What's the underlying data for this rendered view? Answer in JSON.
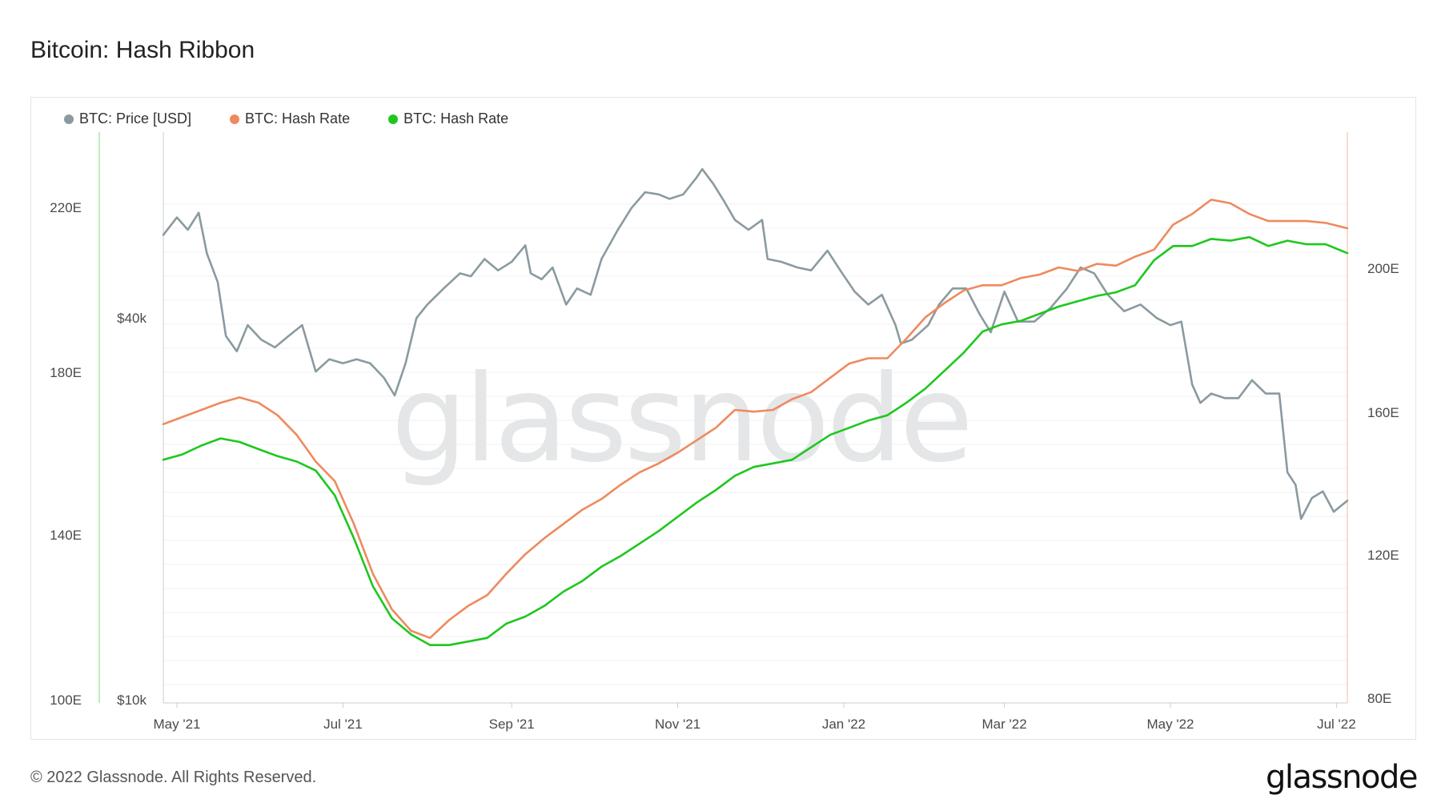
{
  "title": "Bitcoin: Hash Ribbon",
  "footer": "© 2022 Glassnode. All Rights Reserved.",
  "brand": "glassnode",
  "watermark": "glassnode",
  "colors": {
    "price": "#8a9aa0",
    "hash_30d": "#ee8a5f",
    "hash_60d": "#1ec71e"
  },
  "legend": [
    {
      "label": "BTC: Price [USD]",
      "color": "#8a9aa0"
    },
    {
      "label": "BTC: Hash Rate",
      "color": "#ee8a5f"
    },
    {
      "label": "BTC: Hash Rate",
      "color": "#1ec71e"
    }
  ],
  "chart_data": {
    "type": "line",
    "title": "Bitcoin: Hash Ribbon",
    "x_ticks": [
      "May '21",
      "Jul '21",
      "Sep '21",
      "Nov '21",
      "Jan '22",
      "Mar '22",
      "May '22",
      "Jul '22"
    ],
    "x_range": [
      "2021-04-26",
      "2022-07-05"
    ],
    "left_axis_ticks": [
      "220E",
      "180E",
      "140E",
      "100E"
    ],
    "price_axis_ticks": [
      "$40k",
      "$10k"
    ],
    "price_axis_scale": "log",
    "right_axis_ticks": [
      "200E",
      "160E",
      "120E",
      "80E"
    ],
    "grid": true,
    "legend_position": "top-left",
    "series": [
      {
        "name": "BTC: Price [USD]",
        "axis": "price",
        "x": [
          "2021-04-26",
          "2021-05-01",
          "2021-05-05",
          "2021-05-09",
          "2021-05-12",
          "2021-05-16",
          "2021-05-19",
          "2021-05-23",
          "2021-05-27",
          "2021-06-01",
          "2021-06-06",
          "2021-06-11",
          "2021-06-16",
          "2021-06-21",
          "2021-06-26",
          "2021-07-01",
          "2021-07-06",
          "2021-07-11",
          "2021-07-16",
          "2021-07-20",
          "2021-07-24",
          "2021-07-28",
          "2021-08-01",
          "2021-08-07",
          "2021-08-13",
          "2021-08-17",
          "2021-08-22",
          "2021-08-27",
          "2021-09-01",
          "2021-09-06",
          "2021-09-08",
          "2021-09-12",
          "2021-09-16",
          "2021-09-21",
          "2021-09-25",
          "2021-09-30",
          "2021-10-04",
          "2021-10-10",
          "2021-10-15",
          "2021-10-20",
          "2021-10-25",
          "2021-10-29",
          "2021-11-03",
          "2021-11-08",
          "2021-11-10",
          "2021-11-14",
          "2021-11-18",
          "2021-11-22",
          "2021-11-27",
          "2021-12-02",
          "2021-12-04",
          "2021-12-09",
          "2021-12-15",
          "2021-12-20",
          "2021-12-26",
          "2021-12-31",
          "2022-01-05",
          "2022-01-10",
          "2022-01-15",
          "2022-01-20",
          "2022-01-22",
          "2022-01-26",
          "2022-02-01",
          "2022-02-05",
          "2022-02-10",
          "2022-02-15",
          "2022-02-20",
          "2022-02-24",
          "2022-03-01",
          "2022-03-06",
          "2022-03-12",
          "2022-03-18",
          "2022-03-24",
          "2022-03-29",
          "2022-04-03",
          "2022-04-08",
          "2022-04-14",
          "2022-04-20",
          "2022-04-26",
          "2022-05-01",
          "2022-05-05",
          "2022-05-09",
          "2022-05-12",
          "2022-05-16",
          "2022-05-21",
          "2022-05-26",
          "2022-05-31",
          "2022-06-05",
          "2022-06-10",
          "2022-06-13",
          "2022-06-16",
          "2022-06-18",
          "2022-06-22",
          "2022-06-26",
          "2022-06-30",
          "2022-07-05"
        ],
        "y": [
          53500,
          57000,
          54500,
          58000,
          50000,
          45000,
          37000,
          35000,
          38500,
          36500,
          35500,
          37000,
          38500,
          32500,
          34000,
          33500,
          34000,
          33500,
          31800,
          29800,
          33500,
          39500,
          41500,
          44000,
          46500,
          46000,
          49000,
          47000,
          48500,
          51500,
          46500,
          45500,
          47500,
          41500,
          44000,
          43000,
          49000,
          54500,
          59000,
          62500,
          62000,
          61000,
          62000,
          66000,
          68000,
          64500,
          60500,
          56500,
          54500,
          56500,
          49000,
          48500,
          47500,
          47000,
          50500,
          46800,
          43500,
          41500,
          43000,
          38500,
          36000,
          36500,
          38500,
          41500,
          44000,
          44000,
          40000,
          37500,
          43500,
          39000,
          39000,
          41000,
          44000,
          47500,
          46500,
          43000,
          40500,
          41500,
          39500,
          38500,
          39000,
          31000,
          29000,
          30000,
          29500,
          29500,
          31500,
          30000,
          30000,
          22500,
          21500,
          19000,
          20500,
          21000,
          19500,
          20300
        ]
      },
      {
        "name": "BTC: Hash Rate",
        "axis": "right",
        "x": [
          "2021-04-26",
          "2021-05-03",
          "2021-05-10",
          "2021-05-17",
          "2021-05-24",
          "2021-05-31",
          "2021-06-07",
          "2021-06-14",
          "2021-06-21",
          "2021-06-28",
          "2021-07-05",
          "2021-07-12",
          "2021-07-19",
          "2021-07-26",
          "2021-08-02",
          "2021-08-09",
          "2021-08-16",
          "2021-08-23",
          "2021-08-30",
          "2021-09-06",
          "2021-09-13",
          "2021-09-20",
          "2021-09-27",
          "2021-10-04",
          "2021-10-11",
          "2021-10-18",
          "2021-10-25",
          "2021-11-01",
          "2021-11-08",
          "2021-11-15",
          "2021-11-22",
          "2021-11-29",
          "2021-12-06",
          "2021-12-13",
          "2021-12-20",
          "2021-12-27",
          "2022-01-03",
          "2022-01-10",
          "2022-01-17",
          "2022-01-24",
          "2022-01-31",
          "2022-02-07",
          "2022-02-14",
          "2022-02-21",
          "2022-02-28",
          "2022-03-07",
          "2022-03-14",
          "2022-03-21",
          "2022-03-28",
          "2022-04-04",
          "2022-04-11",
          "2022-04-18",
          "2022-04-25",
          "2022-05-02",
          "2022-05-09",
          "2022-05-16",
          "2022-05-23",
          "2022-05-30",
          "2022-06-06",
          "2022-06-13",
          "2022-06-20",
          "2022-06-27",
          "2022-07-05"
        ],
        "y": [
          156,
          158,
          160,
          162,
          163.5,
          162,
          158.5,
          153,
          145.5,
          140,
          128,
          114,
          104,
          98,
          96,
          101,
          105,
          108,
          114,
          119.5,
          124,
          128,
          132,
          135,
          139,
          142.5,
          145,
          148,
          151.5,
          155,
          160,
          159.5,
          160,
          163,
          165,
          169,
          173,
          174.5,
          174.5,
          180,
          186,
          190,
          193.5,
          195,
          195,
          197,
          198,
          200,
          199,
          201,
          200.5,
          203,
          205,
          212,
          215,
          219,
          218,
          215,
          213,
          213,
          213,
          212.5,
          211
        ]
      },
      {
        "name": "BTC: Hash Rate",
        "axis": "right",
        "x": [
          "2021-04-26",
          "2021-05-03",
          "2021-05-10",
          "2021-05-17",
          "2021-05-24",
          "2021-05-31",
          "2021-06-07",
          "2021-06-14",
          "2021-06-21",
          "2021-06-28",
          "2021-07-05",
          "2021-07-12",
          "2021-07-19",
          "2021-07-26",
          "2021-08-02",
          "2021-08-09",
          "2021-08-16",
          "2021-08-23",
          "2021-08-30",
          "2021-09-06",
          "2021-09-13",
          "2021-09-20",
          "2021-09-27",
          "2021-10-04",
          "2021-10-11",
          "2021-10-18",
          "2021-10-25",
          "2021-11-01",
          "2021-11-08",
          "2021-11-15",
          "2021-11-22",
          "2021-11-29",
          "2021-12-06",
          "2021-12-13",
          "2021-12-20",
          "2021-12-27",
          "2022-01-03",
          "2022-01-10",
          "2022-01-17",
          "2022-01-24",
          "2022-01-31",
          "2022-02-07",
          "2022-02-14",
          "2022-02-21",
          "2022-02-28",
          "2022-03-07",
          "2022-03-14",
          "2022-03-21",
          "2022-03-28",
          "2022-04-04",
          "2022-04-11",
          "2022-04-18",
          "2022-04-25",
          "2022-05-02",
          "2022-05-09",
          "2022-05-16",
          "2022-05-23",
          "2022-05-30",
          "2022-06-06",
          "2022-06-13",
          "2022-06-20",
          "2022-06-27",
          "2022-07-05"
        ],
        "y": [
          146,
          147.5,
          150,
          152,
          151,
          149,
          147,
          145.5,
          143,
          136,
          124,
          110.5,
          101.5,
          97,
          94,
          94,
          95,
          96,
          100,
          102,
          105,
          109,
          112,
          116,
          119,
          122.5,
          126,
          130,
          134,
          137.5,
          141.5,
          144,
          145,
          146,
          149.5,
          153,
          155,
          157,
          158.5,
          162,
          166,
          171,
          176,
          182,
          184,
          185,
          187,
          189,
          190.5,
          192,
          193,
          195,
          202,
          206,
          206,
          208,
          207.5,
          208.5,
          206,
          207.5,
          206.5,
          206.5,
          204
        ]
      }
    ]
  }
}
